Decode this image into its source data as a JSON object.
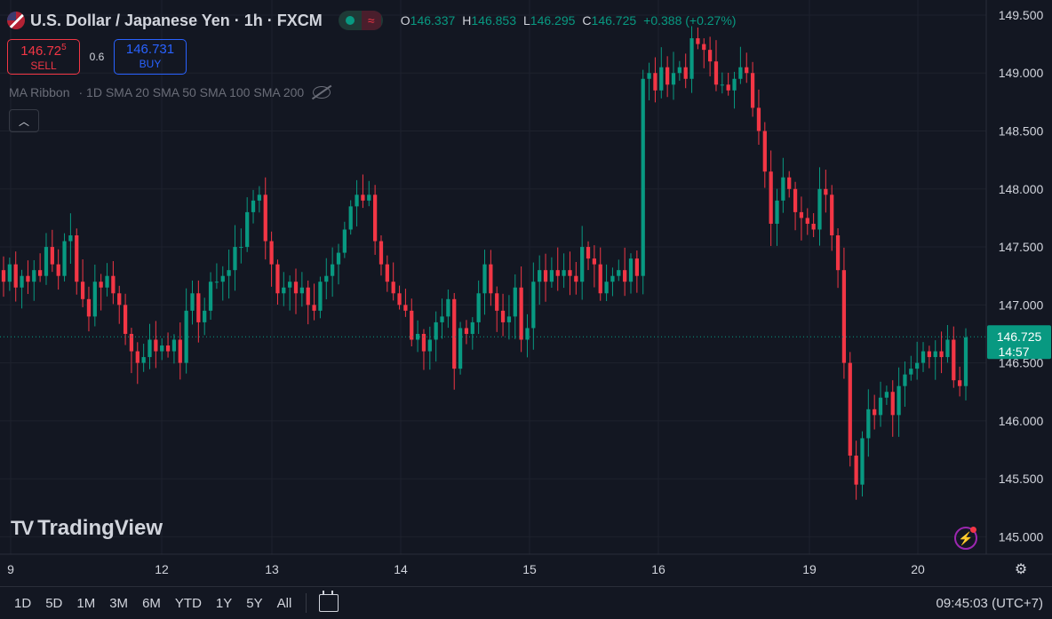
{
  "header": {
    "symbol_title": "U.S. Dollar / Japanese Yen · 1h · FXCM",
    "ohlc": [
      {
        "key": "O",
        "value": "146.337"
      },
      {
        "key": "H",
        "value": "146.853"
      },
      {
        "key": "L",
        "value": "146.295"
      },
      {
        "key": "C",
        "value": "146.725"
      }
    ],
    "change": "+0.388 (+0.27%)",
    "market_status_icon": "market-open-dot",
    "wave_icon": "wave-icon"
  },
  "trade": {
    "sell_price_main": "146.72",
    "sell_price_sup": "5",
    "sell_label": "SELL",
    "spread": "0.6",
    "buy_price": "146.731",
    "buy_label": "BUY"
  },
  "indicator": {
    "name": "MA Ribbon",
    "params": "· 1D SMA 20 SMA 50 SMA 100 SMA 200",
    "collapse_icon": "chevron-up-icon"
  },
  "current_price": {
    "value": "146.725",
    "countdown": "14:57"
  },
  "logo_text": "TradingView",
  "bottom_bar": {
    "ranges": [
      "1D",
      "5D",
      "1M",
      "3M",
      "6M",
      "YTD",
      "1Y",
      "5Y",
      "All"
    ],
    "clock": "09:45:03 (UTC+7)"
  },
  "colors": {
    "up": "#089981",
    "down": "#f23645",
    "background": "#131722",
    "grid": "#1e222d",
    "text": "#d1d4dc"
  },
  "chart_data": {
    "type": "candlestick",
    "instrument": "U.S. Dollar / Japanese Yen",
    "timeframe": "1h",
    "ylim": [
      144.85,
      149.63
    ],
    "y_ticks": [
      "145.000",
      "145.500",
      "146.000",
      "146.500",
      "147.000",
      "147.500",
      "148.000",
      "148.500",
      "149.000",
      "149.500"
    ],
    "x_ticks": [
      "9",
      "12",
      "13",
      "14",
      "15",
      "16",
      "19",
      "20"
    ],
    "closes": [
      147.2,
      147.35,
      147.15,
      147.25,
      147.2,
      147.3,
      147.25,
      147.5,
      147.35,
      147.25,
      147.55,
      147.6,
      147.2,
      147.05,
      146.9,
      147.2,
      147.15,
      147.25,
      147.1,
      147.0,
      146.75,
      146.6,
      146.5,
      146.55,
      146.7,
      146.6,
      146.65,
      146.6,
      146.7,
      146.5,
      146.95,
      147.1,
      146.85,
      146.95,
      147.2,
      147.2,
      147.25,
      147.3,
      147.5,
      147.5,
      147.8,
      147.9,
      147.95,
      147.55,
      147.35,
      147.1,
      147.15,
      147.2,
      147.1,
      147.15,
      147.0,
      146.95,
      147.2,
      147.25,
      147.35,
      147.45,
      147.65,
      147.85,
      147.95,
      147.9,
      147.95,
      147.55,
      147.35,
      147.2,
      147.1,
      147.0,
      146.95,
      146.7,
      146.75,
      146.6,
      146.7,
      146.85,
      146.9,
      147.05,
      146.45,
      146.8,
      146.75,
      146.85,
      147.1,
      147.35,
      147.1,
      146.95,
      146.85,
      146.9,
      147.15,
      146.7,
      146.8,
      147.2,
      147.3,
      147.2,
      147.3,
      147.25,
      147.3,
      147.25,
      147.2,
      147.5,
      147.4,
      147.35,
      147.1,
      147.2,
      147.25,
      147.3,
      147.2,
      147.4,
      147.25,
      148.95,
      149.0,
      148.85,
      149.05,
      148.9,
      149.0,
      149.05,
      148.95,
      149.3,
      149.25,
      149.2,
      149.1,
      148.9,
      148.9,
      148.85,
      148.95,
      149.05,
      149.0,
      148.7,
      148.5,
      148.15,
      147.7,
      147.9,
      148.1,
      148.0,
      147.8,
      147.75,
      147.7,
      147.65,
      148.0,
      147.95,
      147.6,
      147.3,
      146.5,
      145.7,
      145.45,
      145.85,
      146.1,
      146.05,
      146.2,
      146.25,
      146.05,
      146.3,
      146.4,
      146.45,
      146.5,
      146.6,
      146.55,
      146.6,
      146.55,
      146.7,
      146.35,
      146.3,
      146.72
    ]
  }
}
